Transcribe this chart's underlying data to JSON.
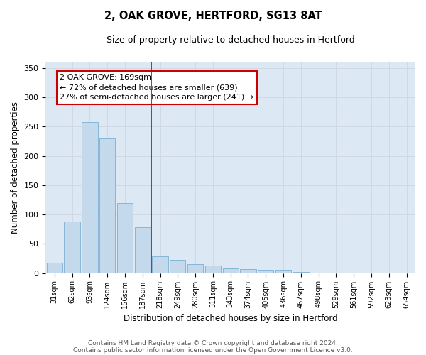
{
  "title1": "2, OAK GROVE, HERTFORD, SG13 8AT",
  "title2": "Size of property relative to detached houses in Hertford",
  "xlabel": "Distribution of detached houses by size in Hertford",
  "ylabel": "Number of detached properties",
  "footer1": "Contains HM Land Registry data © Crown copyright and database right 2024.",
  "footer2": "Contains public sector information licensed under the Open Government Licence v3.0.",
  "categories": [
    "31sqm",
    "62sqm",
    "93sqm",
    "124sqm",
    "156sqm",
    "187sqm",
    "218sqm",
    "249sqm",
    "280sqm",
    "311sqm",
    "343sqm",
    "374sqm",
    "405sqm",
    "436sqm",
    "467sqm",
    "498sqm",
    "529sqm",
    "561sqm",
    "592sqm",
    "623sqm",
    "654sqm"
  ],
  "values": [
    18,
    88,
    258,
    230,
    120,
    78,
    28,
    22,
    15,
    13,
    8,
    7,
    6,
    5,
    2,
    1,
    0,
    0,
    0,
    1,
    0
  ],
  "bar_color": "#c5d9ed",
  "bar_edge_color": "#7aafd4",
  "vline_x": 5.5,
  "vline_color": "#cc0000",
  "annotation_text": "2 OAK GROVE: 169sqm\n← 72% of detached houses are smaller (639)\n27% of semi-detached houses are larger (241) →",
  "annotation_box_color": "#ffffff",
  "annotation_box_edge": "#cc0000",
  "ylim": [
    0,
    360
  ],
  "yticks": [
    0,
    50,
    100,
    150,
    200,
    250,
    300,
    350
  ],
  "grid_color": "#d0d8e4",
  "bg_color": "#ffffff",
  "plot_bg_color": "#dce9f5"
}
